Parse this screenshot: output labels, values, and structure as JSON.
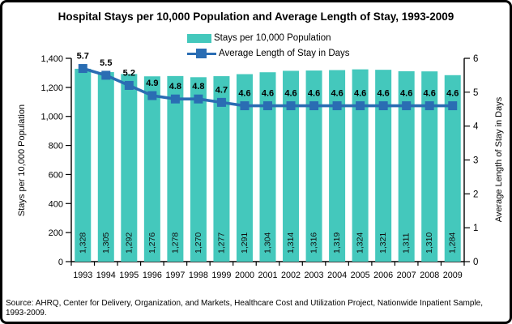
{
  "title": "Hospital Stays per 10,000 Population and Average Length of Stay, 1993-2009",
  "legend": [
    {
      "label": "Stays per 10,000 Population"
    },
    {
      "label": "Average Length of Stay in Days"
    }
  ],
  "axes": {
    "left": {
      "title": "Stays per 10,000 Population"
    },
    "right": {
      "title": "Average Length of Stay in Days"
    }
  },
  "source": "Source: AHRQ, Center for Delivery, Organization, and Markets, Healthcare Cost and Utilization Project, Nationwide Inpatient Sample, 1993-2009.",
  "colors": {
    "bar": "#44C8BC",
    "line": "#2A6DB3",
    "axis": "#000000"
  },
  "chart_data": {
    "type": "bar",
    "categories": [
      "1993",
      "1994",
      "1995",
      "1996",
      "1997",
      "1998",
      "1999",
      "2000",
      "2001",
      "2002",
      "2003",
      "2004",
      "2005",
      "2006",
      "2007",
      "2008",
      "2009"
    ],
    "series": [
      {
        "name": "Stays per 10,000 Population",
        "type": "bar",
        "axis": "left",
        "color": "#44C8BC",
        "values": [
          1328,
          1305,
          1292,
          1276,
          1278,
          1270,
          1277,
          1291,
          1304,
          1314,
          1316,
          1319,
          1324,
          1321,
          1311,
          1310,
          1284
        ]
      },
      {
        "name": "Average Length of Stay in Days",
        "type": "line",
        "axis": "right",
        "color": "#2A6DB3",
        "values": [
          5.7,
          5.5,
          5.2,
          4.9,
          4.8,
          4.8,
          4.7,
          4.6,
          4.6,
          4.6,
          4.6,
          4.6,
          4.6,
          4.6,
          4.6,
          4.6,
          4.6
        ]
      }
    ],
    "title": "Hospital Stays per 10,000 Population and Average Length of Stay, 1993-2009",
    "xlabel": "",
    "left_axis": {
      "label": "Stays per 10,000 Population",
      "range": [
        0,
        1400
      ],
      "tick_step": 200
    },
    "right_axis": {
      "label": "Average Length of Stay in Days",
      "range": [
        0,
        6
      ],
      "tick_step": 1
    },
    "grid": false,
    "legend_position": "top-center"
  }
}
